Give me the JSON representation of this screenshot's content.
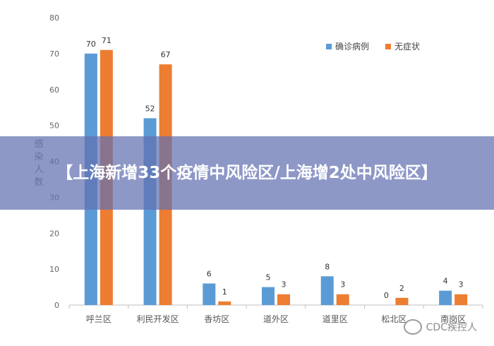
{
  "chart_data": {
    "type": "bar",
    "categories": [
      "呼兰区",
      "利民开发区",
      "香坊区",
      "道外区",
      "道里区",
      "松北区",
      "南岗区"
    ],
    "series": [
      {
        "name": "确诊病例",
        "values": [
          70,
          52,
          6,
          5,
          8,
          0,
          4
        ],
        "color": "#5b9bd5"
      },
      {
        "name": "无症状",
        "values": [
          71,
          67,
          1,
          3,
          3,
          2,
          3
        ],
        "color": "#ed7d31"
      }
    ],
    "ylabel": "感染人数",
    "ylim": [
      0,
      80
    ],
    "yticks": [
      0,
      10,
      20,
      30,
      40,
      50,
      60,
      70,
      80
    ],
    "grid": false,
    "legend_position": "top-right"
  },
  "banner": {
    "text": "【上海新增33个疫情中风险区/上海增2处中风险区】"
  },
  "watermark": {
    "text": "CDC疾控人",
    "icon": "wechat-icon"
  }
}
